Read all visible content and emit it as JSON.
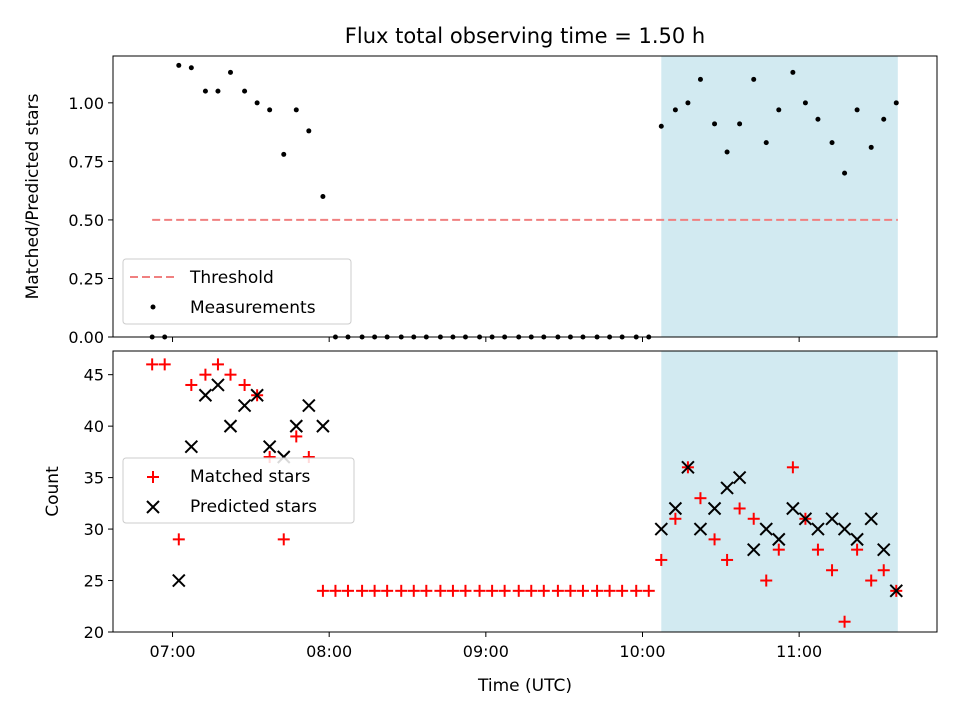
{
  "chart_data": [
    {
      "type": "scatter",
      "title": "Flux total observing time = 1.50 h",
      "xlabel": "",
      "ylabel": "Matched/Predicted stars",
      "ylim": [
        0,
        1.2
      ],
      "yticks": [
        0.0,
        0.25,
        0.5,
        0.75,
        1.0
      ],
      "ytick_labels": [
        "0.00",
        "0.25",
        "0.50",
        "0.75",
        "1.00"
      ],
      "xlim": [
        6.62,
        11.88
      ],
      "shaded_region": {
        "x_start": 10.12,
        "x_end": 11.63,
        "color": "#add8e6"
      },
      "threshold": {
        "label": "Threshold",
        "y": 0.5,
        "x_start": 6.87,
        "x_end": 11.63,
        "color": "#f08080"
      },
      "legend": {
        "position": "lower-left",
        "entries": [
          "Threshold",
          "Measurements"
        ]
      },
      "series": [
        {
          "name": "Measurements",
          "color": "#000000",
          "x": [
            6.87,
            6.95,
            7.04,
            7.12,
            7.21,
            7.29,
            7.37,
            7.46,
            7.54,
            7.62,
            7.71,
            7.79,
            7.87,
            7.96,
            8.04,
            8.12,
            8.21,
            8.29,
            8.37,
            8.46,
            8.54,
            8.62,
            8.71,
            8.79,
            8.87,
            8.96,
            9.04,
            9.12,
            9.21,
            9.29,
            9.37,
            9.46,
            9.54,
            9.62,
            9.71,
            9.79,
            9.87,
            9.96,
            10.04,
            10.12,
            10.21,
            10.29,
            10.37,
            10.46,
            10.54,
            10.62,
            10.71,
            10.79,
            10.87,
            10.96,
            11.04,
            11.12,
            11.21,
            11.29,
            11.37,
            11.46,
            11.54,
            11.62
          ],
          "y": [
            0,
            0,
            1.16,
            1.15,
            1.05,
            1.05,
            1.13,
            1.05,
            1.0,
            0.97,
            0.78,
            0.97,
            0.88,
            0.6,
            0,
            0,
            0,
            0,
            0,
            0,
            0,
            0,
            0,
            0,
            0,
            0,
            0,
            0,
            0,
            0,
            0,
            0,
            0,
            0,
            0,
            0,
            0,
            0,
            0,
            0.9,
            0.97,
            1.0,
            1.1,
            0.91,
            0.79,
            0.91,
            1.1,
            0.83,
            0.97,
            1.13,
            1.0,
            0.93,
            0.83,
            0.7,
            0.97,
            0.81,
            0.93,
            1.0
          ]
        }
      ]
    },
    {
      "type": "scatter",
      "title": "",
      "xlabel": "Time (UTC)",
      "ylabel": "Count",
      "ylim": [
        20,
        47.3
      ],
      "yticks": [
        20,
        25,
        30,
        35,
        40,
        45
      ],
      "ytick_labels": [
        "20",
        "25",
        "30",
        "35",
        "40",
        "45"
      ],
      "xlim": [
        6.62,
        11.88
      ],
      "xticks": [
        7,
        8,
        9,
        10,
        11
      ],
      "xtick_labels": [
        "07:00",
        "08:00",
        "09:00",
        "10:00",
        "11:00"
      ],
      "shaded_region": {
        "x_start": 10.12,
        "x_end": 11.63,
        "color": "#add8e6"
      },
      "legend": {
        "position": "center-left",
        "entries": [
          "Matched stars",
          "Predicted stars"
        ]
      },
      "series": [
        {
          "name": "Matched stars",
          "marker": "plus",
          "color": "#ff0000",
          "x": [
            6.87,
            6.95,
            7.04,
            7.12,
            7.21,
            7.29,
            7.37,
            7.46,
            7.54,
            7.62,
            7.71,
            7.79,
            7.87,
            7.96,
            8.04,
            8.12,
            8.21,
            8.29,
            8.37,
            8.46,
            8.54,
            8.62,
            8.71,
            8.79,
            8.87,
            8.96,
            9.04,
            9.12,
            9.21,
            9.29,
            9.37,
            9.46,
            9.54,
            9.62,
            9.71,
            9.79,
            9.87,
            9.96,
            10.04,
            10.12,
            10.21,
            10.29,
            10.37,
            10.46,
            10.54,
            10.62,
            10.71,
            10.79,
            10.87,
            10.96,
            11.04,
            11.12,
            11.21,
            11.29,
            11.37,
            11.46,
            11.54,
            11.62
          ],
          "y": [
            46,
            46,
            29,
            44,
            45,
            46,
            45,
            44,
            43,
            37,
            29,
            39,
            37,
            24,
            24,
            24,
            24,
            24,
            24,
            24,
            24,
            24,
            24,
            24,
            24,
            24,
            24,
            24,
            24,
            24,
            24,
            24,
            24,
            24,
            24,
            24,
            24,
            24,
            24,
            27,
            31,
            36,
            33,
            29,
            27,
            32,
            31,
            25,
            28,
            36,
            31,
            28,
            26,
            21,
            28,
            25,
            26,
            24
          ]
        },
        {
          "name": "Predicted stars",
          "marker": "x",
          "color": "#000000",
          "x": [
            7.04,
            7.12,
            7.21,
            7.29,
            7.37,
            7.46,
            7.54,
            7.62,
            7.71,
            7.79,
            7.87,
            7.96,
            10.12,
            10.21,
            10.29,
            10.37,
            10.46,
            10.54,
            10.62,
            10.71,
            10.79,
            10.87,
            10.96,
            11.04,
            11.12,
            11.21,
            11.29,
            11.37,
            11.46,
            11.54,
            11.62
          ],
          "y": [
            25,
            38,
            43,
            44,
            40,
            42,
            43,
            38,
            37,
            40,
            42,
            40,
            30,
            32,
            36,
            30,
            32,
            34,
            35,
            28,
            30,
            29,
            32,
            31,
            30,
            31,
            30,
            29,
            31,
            28,
            24
          ]
        }
      ]
    }
  ]
}
